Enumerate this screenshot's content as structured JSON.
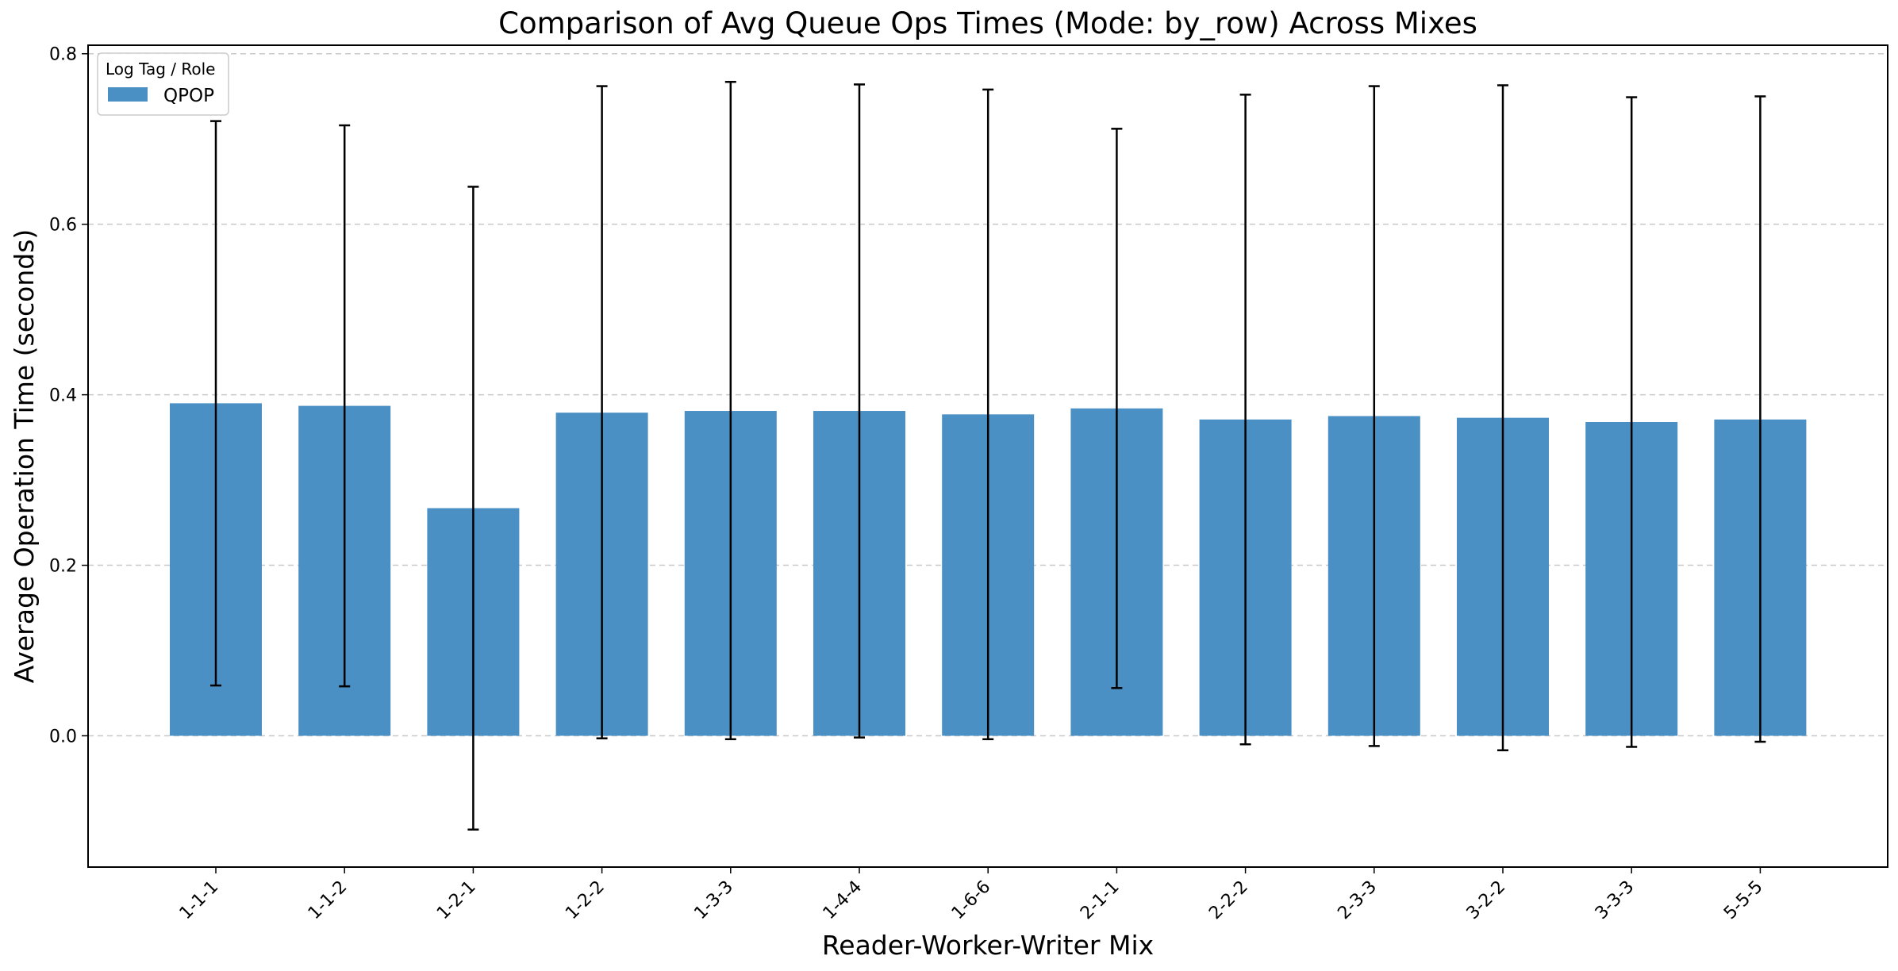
{
  "chart_data": {
    "type": "bar",
    "title": "Comparison of Avg Queue Ops Times (Mode: by_row) Across Mixes",
    "xlabel": "Reader-Worker-Writer Mix",
    "ylabel": "Average Operation Time (seconds)",
    "categories": [
      "1-1-1",
      "1-1-2",
      "1-2-1",
      "1-2-2",
      "1-3-3",
      "1-4-4",
      "1-6-6",
      "2-1-1",
      "2-2-2",
      "2-3-3",
      "3-2-2",
      "3-3-3",
      "5-5-5"
    ],
    "series": [
      {
        "name": "QPOP",
        "color": "#4a90c4",
        "values": [
          0.39,
          0.387,
          0.267,
          0.379,
          0.381,
          0.381,
          0.377,
          0.384,
          0.371,
          0.375,
          0.373,
          0.368,
          0.371
        ],
        "error_low": [
          0.059,
          0.058,
          -0.11,
          -0.003,
          -0.004,
          -0.002,
          -0.004,
          0.056,
          -0.01,
          -0.012,
          -0.017,
          -0.013,
          -0.007
        ],
        "error_high": [
          0.721,
          0.716,
          0.644,
          0.762,
          0.767,
          0.764,
          0.758,
          0.712,
          0.752,
          0.762,
          0.763,
          0.749,
          0.75
        ]
      }
    ],
    "ylim": [
      -0.154,
      0.81
    ],
    "yticks": [
      0.0,
      0.2,
      0.4,
      0.6,
      0.8
    ],
    "ytick_labels": [
      "0.0",
      "0.2",
      "0.4",
      "0.6",
      "0.8"
    ],
    "grid": "horizontal-dashed",
    "legend": {
      "title": "Log Tag / Role",
      "position": "top-left"
    }
  }
}
